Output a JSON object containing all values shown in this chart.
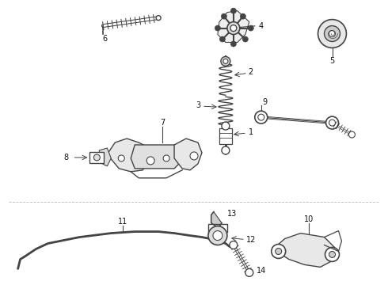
{
  "background_color": "#ffffff",
  "line_color": "#444444",
  "text_color": "#111111",
  "fig_width": 4.9,
  "fig_height": 3.6,
  "dpi": 100
}
